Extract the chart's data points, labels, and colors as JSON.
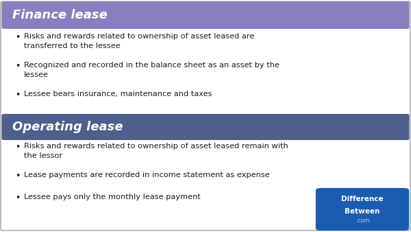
{
  "finance_header": "Finance lease",
  "finance_bullets": [
    "Risks and rewards related to ownership of asset leased are\ntransferred to the lessee",
    "Recognized and recorded in the balance sheet as an asset by the\nlessee",
    "Lessee bears insurance, maintenance and taxes"
  ],
  "operating_header": "Operating lease",
  "operating_bullets": [
    "Risks and rewards related to ownership of asset leased remain with\nthe lessor",
    "Lease payments are recorded in income statement as expense",
    "Lessee pays only the monthly lease payment"
  ],
  "finance_header_color": "#8880be",
  "operating_header_color": "#4e5f8c",
  "header_text_color": "#ffffff",
  "bullet_text_color": "#1a1a1a",
  "background_color": "#ffffff",
  "border_color": "#b0b0b0",
  "logo_bg_color": "#1a5cb0",
  "logo_text1": "Difference",
  "logo_text2": "Between",
  "logo_text3": ".com"
}
